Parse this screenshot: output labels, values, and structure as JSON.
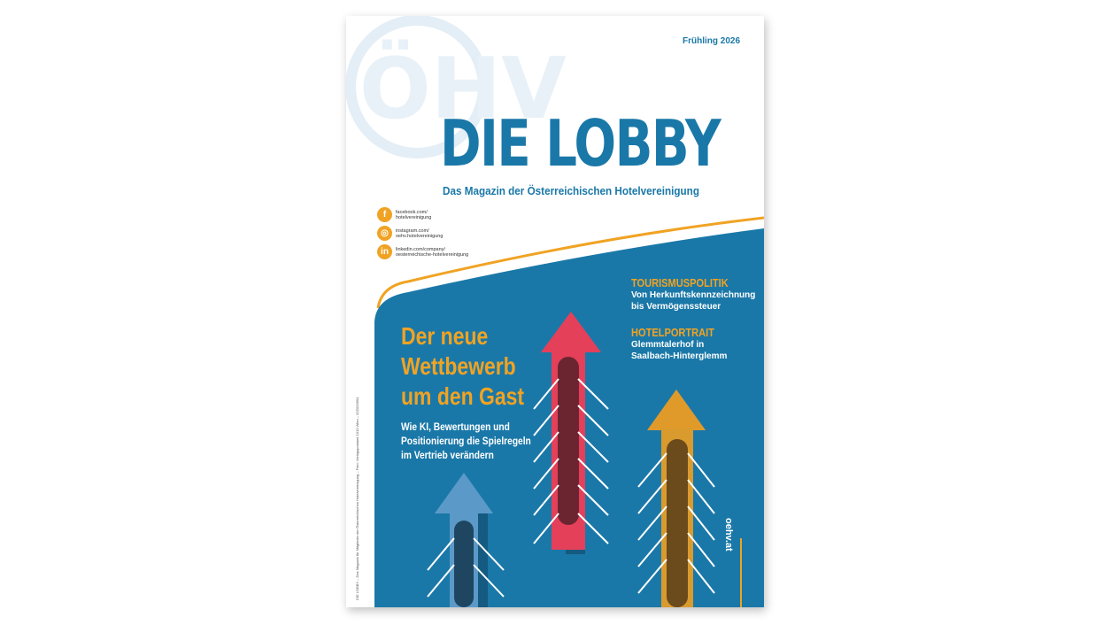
{
  "cover": {
    "season": "Frühling 2026",
    "title": "DIE LOBBY",
    "subtitle": "Das Magazin der Österreichischen Hotelvereinigung",
    "logo_text": "ÖHV",
    "social": [
      {
        "icon": "facebook-icon",
        "glyph": "f",
        "line1": "facebook.com/",
        "line2": "hotelvereinigung"
      },
      {
        "icon": "instagram-icon",
        "glyph": "◎",
        "line1": "instagram.com/",
        "line2": "oehv.hotelvereinigung"
      },
      {
        "icon": "linkedin-icon",
        "glyph": "in",
        "line1": "linkedin.com/company/",
        "line2": "oesterreichische-hotelvereinigung"
      }
    ],
    "headline": [
      "Der neue",
      "Wettbewerb",
      "um den Gast"
    ],
    "deck": [
      "Wie KI, Bewertungen und",
      "Positionierung die Spielregeln",
      "im Vertrieb verändern"
    ],
    "sections": [
      {
        "heading": "TOURISMUSPOLITIK",
        "lines": [
          "Von Herkunftskennzeichnung",
          "bis Vermögenssteuer"
        ]
      },
      {
        "heading": "HOTELPORTRAIT",
        "lines": [
          "Glemmtalerhof in",
          "Saalbach-Hinterglemm"
        ]
      }
    ],
    "url": "oehv.at",
    "spine": "DIE LOBBY – Das Magazin für Mitglieder der Österreichischen Hotelvereinigung – Foto: Verlagspostamt 1010 Wien – 02Z033994",
    "colors": {
      "blue": "#1a78a8",
      "orange": "#f0a323",
      "red": "#e4405a",
      "lightblue": "#5b9ac8"
    }
  }
}
